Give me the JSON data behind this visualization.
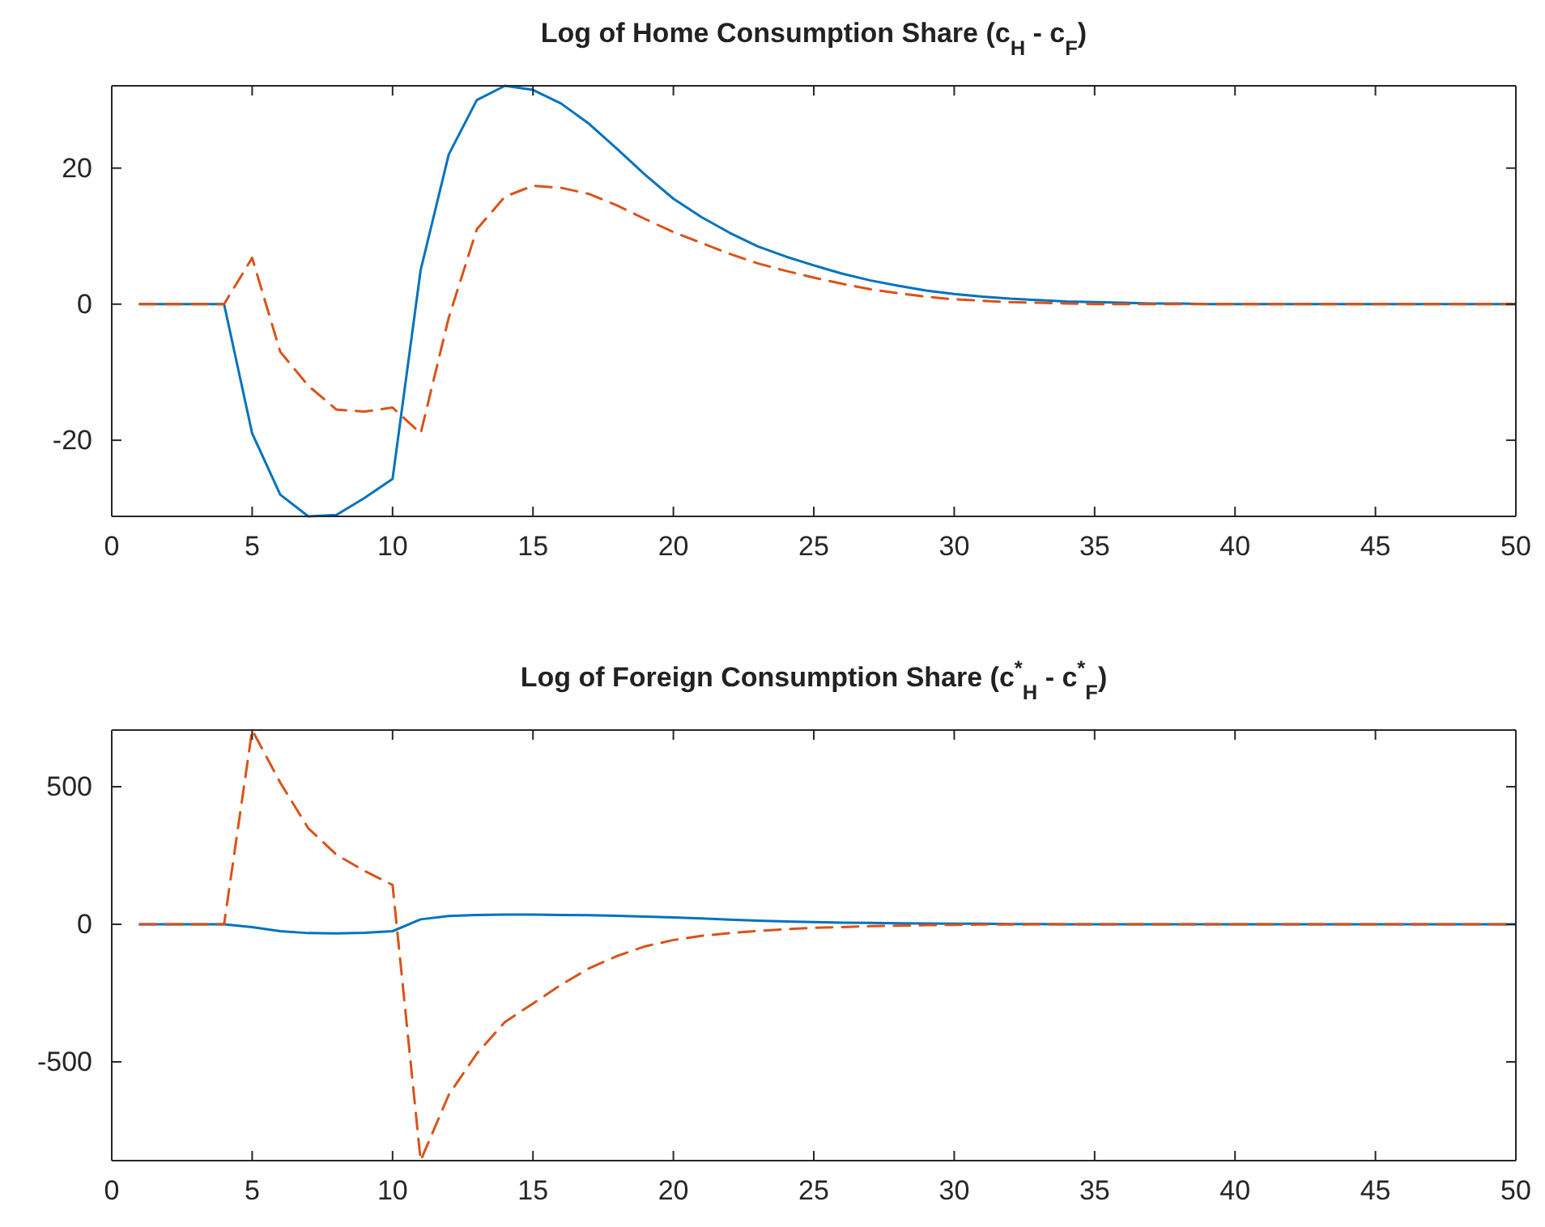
{
  "chart_data": [
    {
      "type": "line",
      "title": "Log of Home Consumption Share (c$_{H}$ - c$_{F}$)",
      "x": [
        1,
        2,
        3,
        4,
        5,
        6,
        7,
        8,
        9,
        10,
        11,
        12,
        13,
        14,
        15,
        16,
        17,
        18,
        19,
        20,
        21,
        22,
        23,
        24,
        25,
        26,
        27,
        28,
        29,
        30,
        31,
        32,
        33,
        34,
        35,
        36,
        37,
        38,
        39,
        40,
        41,
        42,
        43,
        44,
        45,
        46,
        47,
        48,
        49,
        50
      ],
      "xlim": [
        0,
        50
      ],
      "xticks": [
        0,
        5,
        10,
        15,
        20,
        25,
        30,
        35,
        40,
        45,
        50
      ],
      "ylim": [
        -31.2,
        32.1
      ],
      "yticks": [
        -20,
        0,
        20
      ],
      "grid": false,
      "series": [
        {
          "color": "#0072bd",
          "line_style": "solid",
          "values": [
            0,
            0,
            0,
            0,
            -19,
            -28,
            -31.2,
            -31,
            -28.5,
            -25.7,
            5,
            22,
            30,
            32.1,
            31.5,
            29.5,
            26.5,
            22.8,
            19,
            15.5,
            12.8,
            10.5,
            8.5,
            7,
            5.7,
            4.5,
            3.5,
            2.7,
            2,
            1.5,
            1.1,
            0.8,
            0.6,
            0.4,
            0.3,
            0.2,
            0.1,
            0.1,
            0,
            0,
            0,
            0,
            0,
            0,
            0,
            0,
            0,
            0,
            0,
            0
          ]
        },
        {
          "color": "#d95319",
          "line_style": "dashed",
          "values": [
            0,
            0,
            0,
            0,
            6.8,
            -7,
            -12,
            -15.5,
            -15.8,
            -15.2,
            -19,
            -2,
            11,
            15.8,
            17.4,
            17.1,
            16.2,
            14.5,
            12.5,
            10.6,
            9,
            7.4,
            6,
            4.9,
            3.9,
            3,
            2.2,
            1.6,
            1.1,
            0.7,
            0.5,
            0.3,
            0.2,
            0.1,
            0,
            0,
            0,
            0,
            0,
            0,
            0,
            0,
            0,
            0,
            0,
            0,
            0,
            0,
            0,
            0
          ]
        }
      ]
    },
    {
      "type": "line",
      "title": "Log of Foreign Consumption Share (c$^{*}$$_{H}$ - c$^{*}$$_{F}$)",
      "x": [
        1,
        2,
        3,
        4,
        5,
        6,
        7,
        8,
        9,
        10,
        11,
        12,
        13,
        14,
        15,
        16,
        17,
        18,
        19,
        20,
        21,
        22,
        23,
        24,
        25,
        26,
        27,
        28,
        29,
        30,
        31,
        32,
        33,
        34,
        35,
        36,
        37,
        38,
        39,
        40,
        41,
        42,
        43,
        44,
        45,
        46,
        47,
        48,
        49,
        50
      ],
      "xlim": [
        0,
        50
      ],
      "xticks": [
        0,
        5,
        10,
        15,
        20,
        25,
        30,
        35,
        40,
        45,
        50
      ],
      "ylim": [
        -859,
        706
      ],
      "yticks": [
        -500,
        0,
        500
      ],
      "grid": false,
      "series": [
        {
          "color": "#0072bd",
          "line_style": "solid",
          "values": [
            0,
            0,
            0,
            0,
            -10,
            -25,
            -32,
            -33,
            -31,
            -25,
            18,
            30,
            34,
            35,
            35,
            34,
            33,
            31,
            28,
            25,
            21,
            17,
            13,
            10,
            8,
            6,
            5,
            4,
            3,
            2,
            2,
            1,
            1,
            0,
            0,
            0,
            0,
            0,
            0,
            0,
            0,
            0,
            0,
            0,
            0,
            0,
            0,
            0,
            0,
            0
          ]
        },
        {
          "color": "#d95319",
          "line_style": "dashed",
          "values": [
            0,
            0,
            0,
            0,
            706,
            515,
            349,
            253,
            194,
            143,
            -859,
            -620,
            -470,
            -355,
            -288,
            -220,
            -160,
            -115,
            -80,
            -57,
            -42,
            -32,
            -24,
            -18,
            -13,
            -10,
            -7,
            -5,
            -3,
            -2,
            -1,
            -1,
            0,
            0,
            0,
            0,
            0,
            0,
            0,
            0,
            0,
            0,
            0,
            0,
            0,
            0,
            0,
            0,
            0,
            0
          ]
        }
      ]
    }
  ]
}
